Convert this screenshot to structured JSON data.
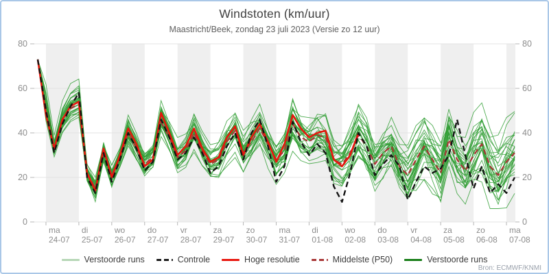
{
  "panel": {
    "title": "Windstoten (km/uur)",
    "subtitle": "Maastricht/Beek, zondag 23 juli 2023 (Versie zo 12 uur)",
    "source": "Bron: ECMWF/KNMI"
  },
  "legend": {
    "items": [
      {
        "label": "Verstoorde runs",
        "color": "#b5d6b5",
        "style": "solid"
      },
      {
        "label": "Controle",
        "color": "#1a1a1a",
        "style": "dashed"
      },
      {
        "label": "Hoge resolutie",
        "color": "#e8150d",
        "style": "solid"
      },
      {
        "label": "Middelste (P50)",
        "color": "#a83535",
        "style": "dashed"
      },
      {
        "label": "Verstoorde runs",
        "color": "#177d17",
        "style": "solid"
      }
    ]
  },
  "chart_data": {
    "type": "line",
    "title": "Windstoten (km/uur)",
    "subtitle": "Maastricht/Beek, zondag 23 juli 2023 (Versie zo 12 uur)",
    "ylabel": "km/uur",
    "y_axis": {
      "min": 0,
      "max": 80,
      "ticks": [
        0,
        20,
        40,
        60,
        80
      ],
      "gridlines": true,
      "labels_both_sides": true
    },
    "x_axis": {
      "tick_at": "00:00 each day",
      "days": [
        {
          "name": "ma",
          "date": "24-07"
        },
        {
          "name": "di",
          "date": "25-07"
        },
        {
          "name": "wo",
          "date": "26-07"
        },
        {
          "name": "do",
          "date": "27-07"
        },
        {
          "name": "vr",
          "date": "28-07"
        },
        {
          "name": "za",
          "date": "29-07"
        },
        {
          "name": "zo",
          "date": "30-07"
        },
        {
          "name": "ma",
          "date": "31-07"
        },
        {
          "name": "di",
          "date": "01-08"
        },
        {
          "name": "wo",
          "date": "02-08"
        },
        {
          "name": "do",
          "date": "03-08"
        },
        {
          "name": "vr",
          "date": "04-08"
        },
        {
          "name": "za",
          "date": "05-08"
        },
        {
          "name": "zo",
          "date": "06-08"
        },
        {
          "name": "ma",
          "date": "07-08"
        }
      ]
    },
    "bands": {
      "shaded_day_indices": [
        0,
        2,
        4,
        6,
        8,
        10,
        12,
        14
      ],
      "color": "#efefef"
    },
    "time_hours": {
      "origin": "zo 23-07 12:00",
      "start": 6,
      "step": 6,
      "points": 59
    },
    "series": [
      {
        "name": "Hoge resolutie",
        "color": "#e8150d",
        "style": "solid",
        "width": 2.6,
        "values": [
          73,
          48,
          33,
          46,
          52,
          54,
          22,
          14,
          33,
          20,
          30,
          42,
          35,
          25,
          28,
          49,
          40,
          30,
          34,
          42,
          33,
          27,
          29,
          38,
          43,
          30,
          38,
          44,
          36,
          27,
          35,
          48,
          42,
          38,
          40,
          41,
          28,
          25,
          30,
          40
        ]
      },
      {
        "name": "Controle",
        "color": "#141414",
        "style": "dashed",
        "width": 2.4,
        "values": [
          73,
          50,
          31,
          44,
          52,
          58,
          20,
          13,
          31,
          18,
          28,
          40,
          33,
          23,
          27,
          46,
          38,
          28,
          31,
          38,
          31,
          22,
          25,
          34,
          40,
          28,
          40,
          46,
          34,
          18,
          25,
          45,
          36,
          30,
          35,
          31,
          16,
          9,
          22,
          40,
          34,
          21,
          26,
          30,
          25,
          10,
          18,
          25,
          22,
          24,
          30,
          46,
          30,
          15,
          25,
          13,
          17,
          13,
          20
        ]
      },
      {
        "name": "Middelste (P50)",
        "color": "#a83535",
        "style": "dashed",
        "width": 2.2,
        "values": [
          73,
          51,
          33,
          45,
          51,
          53,
          22,
          15,
          31,
          21,
          29,
          40,
          33,
          26,
          29,
          45,
          38,
          29,
          32,
          40,
          32,
          26,
          28,
          36,
          41,
          31,
          36,
          42,
          35,
          28,
          32,
          44,
          38,
          36,
          39,
          38,
          28,
          26,
          31,
          39,
          34,
          26,
          31,
          34,
          25,
          21,
          28,
          34,
          28,
          22,
          37,
          28,
          23,
          30,
          35,
          25,
          21,
          27,
          31
        ]
      }
    ],
    "ensemble": {
      "name": "Verstoorde runs",
      "count": 30,
      "color": "#2f9e33",
      "width": 0.9,
      "opacity": 0.85,
      "base_series": "Middelste (P50)",
      "spread_per_day": 0.85,
      "spread_base": 1.2,
      "clamp": [
        6,
        76
      ],
      "members": [
        {
          "s": 1,
          "b": -8,
          "a": 0.9
        },
        {
          "s": 2,
          "b": -6,
          "a": 1.0
        },
        {
          "s": 3,
          "b": -4,
          "a": 1.1
        },
        {
          "s": 4,
          "b": -2,
          "a": 1.25
        },
        {
          "s": 5,
          "b": 0,
          "a": 0.95
        },
        {
          "s": 6,
          "b": 2,
          "a": 1.05
        },
        {
          "s": 7,
          "b": 4,
          "a": 0.85
        },
        {
          "s": 8,
          "b": 6,
          "a": 1.15
        },
        {
          "s": 9,
          "b": 8,
          "a": 1.3
        },
        {
          "s": 10,
          "b": -7,
          "a": 1.0
        },
        {
          "s": 11,
          "b": -5,
          "a": 1.1
        },
        {
          "s": 12,
          "b": -3,
          "a": 0.9
        },
        {
          "s": 13,
          "b": -1,
          "a": 1.2
        },
        {
          "s": 14,
          "b": 1,
          "a": 1.0
        },
        {
          "s": 15,
          "b": 3,
          "a": 0.95
        },
        {
          "s": 16,
          "b": 5,
          "a": 1.1
        },
        {
          "s": 17,
          "b": 7,
          "a": 0.9
        },
        {
          "s": 18,
          "b": -8,
          "a": 1.05
        },
        {
          "s": 19,
          "b": -4,
          "a": 1.15
        },
        {
          "s": 20,
          "b": 0,
          "a": 1.25
        },
        {
          "s": 21,
          "b": 4,
          "a": 0.9
        },
        {
          "s": 22,
          "b": 8,
          "a": 1.05
        },
        {
          "s": 23,
          "b": -6,
          "a": 1.2
        },
        {
          "s": 24,
          "b": -2,
          "a": 0.85
        },
        {
          "s": 25,
          "b": 2,
          "a": 1.1
        },
        {
          "s": 26,
          "b": 6,
          "a": 0.95
        },
        {
          "s": 27,
          "b": -5,
          "a": 1.3
        },
        {
          "s": 28,
          "b": 1,
          "a": 0.9
        },
        {
          "s": 29,
          "b": 5,
          "a": 1.0
        },
        {
          "s": 30,
          "b": -1,
          "a": 1.1
        }
      ]
    }
  }
}
